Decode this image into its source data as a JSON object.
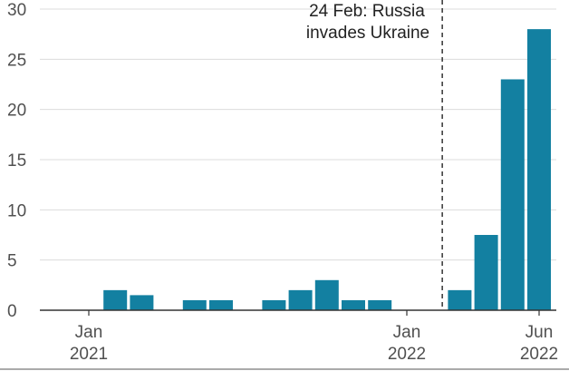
{
  "chart_data": {
    "type": "bar",
    "title": "",
    "xlabel": "",
    "ylabel": "",
    "ylim": [
      0,
      30
    ],
    "y_ticks": [
      "0",
      "5",
      "10",
      "15",
      "20",
      "25",
      "30"
    ],
    "grid": true,
    "bar_color": "#1380a1",
    "gridline_color": "#dcdcdc",
    "categories": [
      "2021-01",
      "2021-02",
      "2021-03",
      "2021-04",
      "2021-05",
      "2021-06",
      "2021-07",
      "2021-08",
      "2021-09",
      "2021-10",
      "2021-11",
      "2021-12",
      "2022-01",
      "2022-02",
      "2022-03",
      "2022-04",
      "2022-05",
      "2022-06"
    ],
    "values": [
      0,
      2,
      1.5,
      0,
      1,
      1,
      0,
      1,
      2,
      3,
      1,
      1,
      0,
      0,
      2,
      7.5,
      23,
      28
    ],
    "x_tick_labels": [
      {
        "category": "2021-01",
        "line1": "Jan",
        "line2": "2021"
      },
      {
        "category": "2022-01",
        "line1": "Jan",
        "line2": "2022"
      },
      {
        "category": "2022-06",
        "line1": "Jun",
        "line2": "2022"
      }
    ],
    "annotation": {
      "date": "2022-02-24",
      "lines": [
        "24 Feb: Russia",
        "invades Ukraine"
      ]
    }
  }
}
